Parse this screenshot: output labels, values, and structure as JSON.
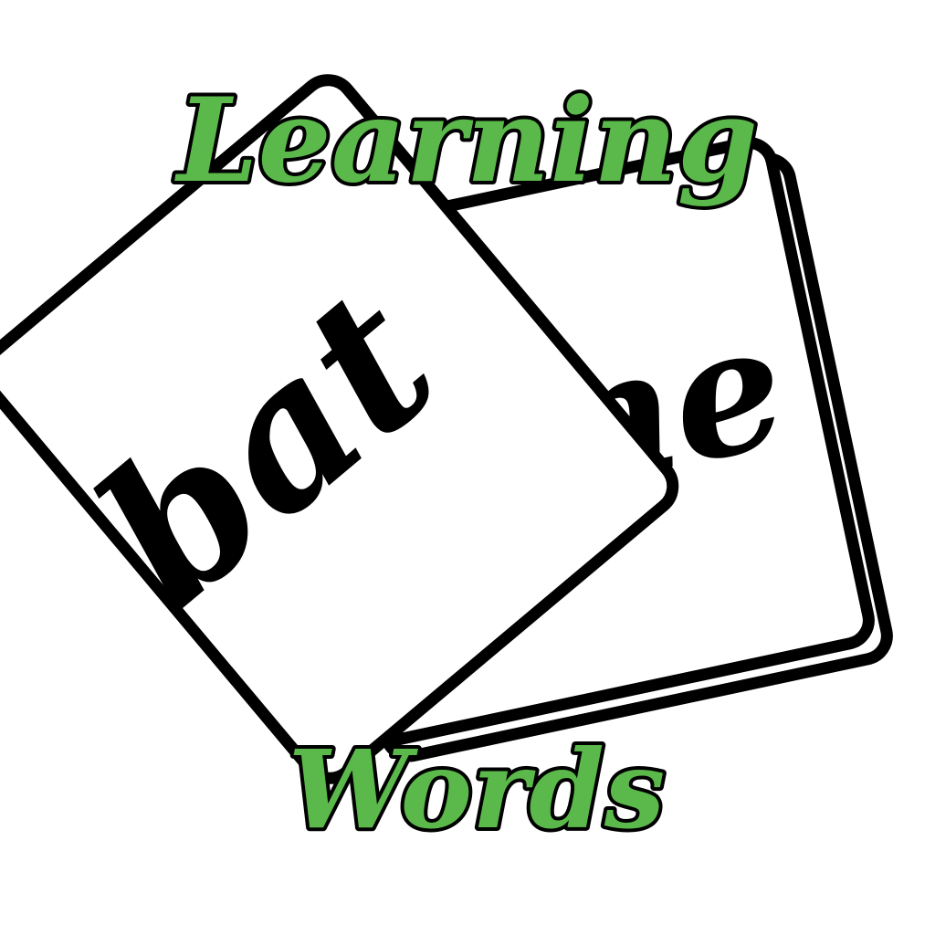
{
  "title": {
    "line1": "Learning",
    "line2": "Words"
  },
  "cards": {
    "front_word": "bat",
    "back_word_visible": "ne"
  },
  "colors": {
    "title_fill": "#5bb84a",
    "outline": "#000000",
    "card_fill": "#ffffff",
    "background": "#ffffff"
  }
}
